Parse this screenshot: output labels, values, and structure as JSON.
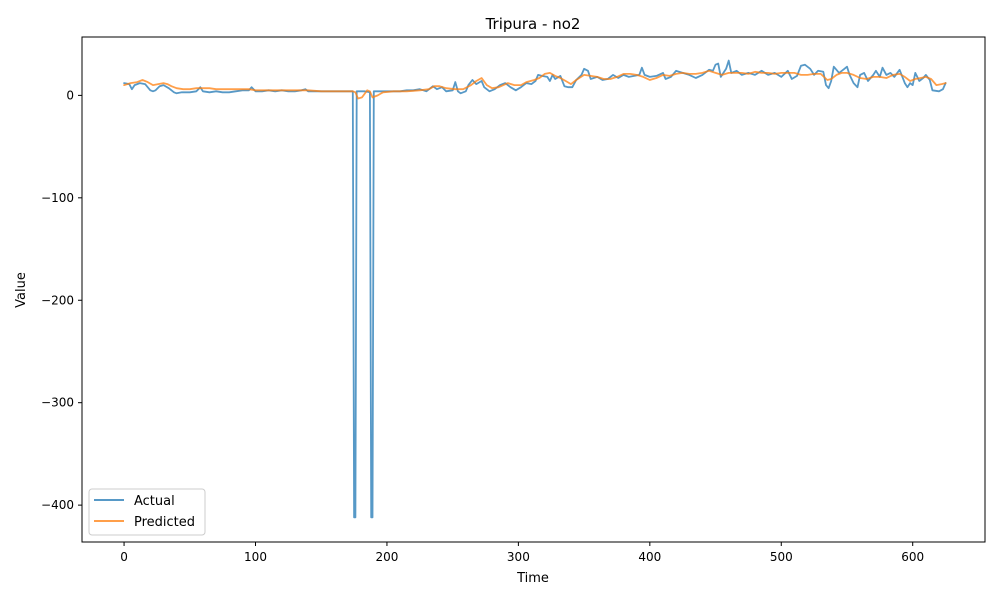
{
  "chart_data": {
    "type": "line",
    "title": "Tripura - no2",
    "xlabel": "Time",
    "ylabel": "Value",
    "xlim": [
      -32,
      655
    ],
    "ylim": [
      -436,
      57
    ],
    "xticks": [
      0,
      100,
      200,
      300,
      400,
      500,
      600
    ],
    "yticks": [
      -400,
      -300,
      -200,
      -100,
      0
    ],
    "ytick_labels": [
      "−400",
      "−300",
      "−200",
      "−100",
      "0"
    ],
    "grid": false,
    "legend_position": "lower-left",
    "series": [
      {
        "name": "Actual",
        "color": "#1f77b4",
        "points": [
          [
            0,
            12
          ],
          [
            4,
            11
          ],
          [
            6,
            6
          ],
          [
            8,
            10
          ],
          [
            12,
            12
          ],
          [
            16,
            11
          ],
          [
            18,
            8
          ],
          [
            20,
            5
          ],
          [
            22,
            4
          ],
          [
            24,
            5
          ],
          [
            27,
            9
          ],
          [
            30,
            10
          ],
          [
            34,
            7
          ],
          [
            38,
            3
          ],
          [
            40,
            2
          ],
          [
            44,
            3
          ],
          [
            50,
            3
          ],
          [
            55,
            4
          ],
          [
            58,
            8
          ],
          [
            60,
            4
          ],
          [
            65,
            3
          ],
          [
            70,
            4
          ],
          [
            75,
            3
          ],
          [
            80,
            3
          ],
          [
            90,
            5
          ],
          [
            95,
            5
          ],
          [
            97,
            8
          ],
          [
            100,
            4
          ],
          [
            105,
            4
          ],
          [
            110,
            5
          ],
          [
            115,
            4
          ],
          [
            120,
            5
          ],
          [
            125,
            4
          ],
          [
            130,
            4
          ],
          [
            135,
            5
          ],
          [
            138,
            6
          ],
          [
            140,
            4
          ],
          [
            150,
            4
          ],
          [
            160,
            4
          ],
          [
            170,
            4
          ],
          [
            174,
            4
          ],
          [
            175,
            -412
          ],
          [
            176,
            -412
          ],
          [
            177,
            4
          ],
          [
            183,
            4
          ],
          [
            187,
            3
          ],
          [
            188,
            -412
          ],
          [
            189,
            -412
          ],
          [
            190,
            4
          ],
          [
            200,
            4
          ],
          [
            210,
            4
          ],
          [
            215,
            5
          ],
          [
            220,
            5
          ],
          [
            225,
            6
          ],
          [
            230,
            4
          ],
          [
            235,
            9
          ],
          [
            238,
            6
          ],
          [
            242,
            8
          ],
          [
            245,
            4
          ],
          [
            250,
            5
          ],
          [
            252,
            13
          ],
          [
            254,
            4
          ],
          [
            256,
            2
          ],
          [
            260,
            4
          ],
          [
            262,
            10
          ],
          [
            265,
            15
          ],
          [
            268,
            11
          ],
          [
            272,
            14
          ],
          [
            274,
            8
          ],
          [
            278,
            4
          ],
          [
            282,
            6
          ],
          [
            286,
            10
          ],
          [
            290,
            12
          ],
          [
            294,
            8
          ],
          [
            298,
            5
          ],
          [
            302,
            8
          ],
          [
            306,
            12
          ],
          [
            310,
            11
          ],
          [
            313,
            14
          ],
          [
            315,
            20
          ],
          [
            318,
            19
          ],
          [
            322,
            18
          ],
          [
            324,
            14
          ],
          [
            326,
            20
          ],
          [
            328,
            16
          ],
          [
            332,
            19
          ],
          [
            335,
            9
          ],
          [
            338,
            8
          ],
          [
            341,
            8
          ],
          [
            344,
            15
          ],
          [
            348,
            20
          ],
          [
            350,
            26
          ],
          [
            353,
            24
          ],
          [
            355,
            16
          ],
          [
            360,
            18
          ],
          [
            364,
            15
          ],
          [
            368,
            16
          ],
          [
            372,
            20
          ],
          [
            376,
            17
          ],
          [
            380,
            20
          ],
          [
            384,
            18
          ],
          [
            388,
            19
          ],
          [
            392,
            20
          ],
          [
            394,
            27
          ],
          [
            396,
            20
          ],
          [
            400,
            18
          ],
          [
            405,
            19
          ],
          [
            410,
            22
          ],
          [
            412,
            16
          ],
          [
            416,
            18
          ],
          [
            420,
            24
          ],
          [
            425,
            22
          ],
          [
            430,
            20
          ],
          [
            435,
            17
          ],
          [
            440,
            20
          ],
          [
            445,
            25
          ],
          [
            448,
            24
          ],
          [
            450,
            30
          ],
          [
            452,
            31
          ],
          [
            454,
            18
          ],
          [
            458,
            26
          ],
          [
            460,
            34
          ],
          [
            462,
            22
          ],
          [
            466,
            24
          ],
          [
            470,
            20
          ],
          [
            475,
            22
          ],
          [
            480,
            20
          ],
          [
            485,
            24
          ],
          [
            490,
            20
          ],
          [
            495,
            22
          ],
          [
            500,
            18
          ],
          [
            505,
            24
          ],
          [
            508,
            16
          ],
          [
            512,
            19
          ],
          [
            515,
            29
          ],
          [
            518,
            30
          ],
          [
            522,
            26
          ],
          [
            525,
            20
          ],
          [
            528,
            24
          ],
          [
            532,
            23
          ],
          [
            534,
            10
          ],
          [
            536,
            7
          ],
          [
            538,
            14
          ],
          [
            540,
            28
          ],
          [
            544,
            22
          ],
          [
            548,
            26
          ],
          [
            550,
            28
          ],
          [
            552,
            20
          ],
          [
            555,
            12
          ],
          [
            558,
            8
          ],
          [
            560,
            20
          ],
          [
            563,
            22
          ],
          [
            566,
            14
          ],
          [
            570,
            20
          ],
          [
            572,
            24
          ],
          [
            575,
            18
          ],
          [
            577,
            27
          ],
          [
            580,
            20
          ],
          [
            583,
            22
          ],
          [
            586,
            18
          ],
          [
            590,
            25
          ],
          [
            594,
            12
          ],
          [
            596,
            8
          ],
          [
            598,
            12
          ],
          [
            600,
            10
          ],
          [
            602,
            22
          ],
          [
            605,
            14
          ],
          [
            608,
            17
          ],
          [
            610,
            20
          ],
          [
            613,
            15
          ],
          [
            615,
            5
          ],
          [
            620,
            4
          ],
          [
            623,
            6
          ],
          [
            625,
            12
          ]
        ]
      },
      {
        "name": "Predicted",
        "color": "#ff7f0e",
        "points": [
          [
            0,
            10
          ],
          [
            5,
            12
          ],
          [
            10,
            13
          ],
          [
            14,
            15
          ],
          [
            18,
            13
          ],
          [
            22,
            10
          ],
          [
            26,
            11
          ],
          [
            30,
            12
          ],
          [
            33,
            11
          ],
          [
            36,
            9
          ],
          [
            40,
            7
          ],
          [
            45,
            6
          ],
          [
            50,
            6
          ],
          [
            55,
            7
          ],
          [
            60,
            7
          ],
          [
            65,
            7
          ],
          [
            70,
            6
          ],
          [
            75,
            6
          ],
          [
            80,
            6
          ],
          [
            90,
            6
          ],
          [
            95,
            6
          ],
          [
            100,
            5
          ],
          [
            110,
            5
          ],
          [
            120,
            5
          ],
          [
            130,
            5
          ],
          [
            140,
            5
          ],
          [
            150,
            4
          ],
          [
            160,
            4
          ],
          [
            170,
            4
          ],
          [
            174,
            4
          ],
          [
            176,
            3
          ],
          [
            178,
            -3
          ],
          [
            181,
            -2
          ],
          [
            185,
            5
          ],
          [
            187,
            4
          ],
          [
            189,
            -2
          ],
          [
            193,
            0
          ],
          [
            197,
            3
          ],
          [
            205,
            4
          ],
          [
            215,
            4
          ],
          [
            225,
            5
          ],
          [
            232,
            6
          ],
          [
            236,
            9
          ],
          [
            240,
            9
          ],
          [
            245,
            7
          ],
          [
            252,
            6
          ],
          [
            258,
            6
          ],
          [
            264,
            10
          ],
          [
            268,
            14
          ],
          [
            272,
            17
          ],
          [
            276,
            10
          ],
          [
            280,
            7
          ],
          [
            285,
            8
          ],
          [
            292,
            12
          ],
          [
            297,
            10
          ],
          [
            302,
            10
          ],
          [
            306,
            13
          ],
          [
            312,
            15
          ],
          [
            316,
            17
          ],
          [
            320,
            21
          ],
          [
            324,
            22
          ],
          [
            328,
            19
          ],
          [
            332,
            17
          ],
          [
            336,
            14
          ],
          [
            340,
            11
          ],
          [
            344,
            15
          ],
          [
            350,
            20
          ],
          [
            355,
            19
          ],
          [
            360,
            18
          ],
          [
            365,
            16
          ],
          [
            370,
            16
          ],
          [
            375,
            18
          ],
          [
            380,
            21
          ],
          [
            385,
            21
          ],
          [
            390,
            20
          ],
          [
            395,
            18
          ],
          [
            400,
            15
          ],
          [
            405,
            17
          ],
          [
            410,
            20
          ],
          [
            415,
            19
          ],
          [
            420,
            21
          ],
          [
            425,
            22
          ],
          [
            430,
            21
          ],
          [
            435,
            21
          ],
          [
            440,
            22
          ],
          [
            445,
            24
          ],
          [
            450,
            22
          ],
          [
            455,
            20
          ],
          [
            460,
            22
          ],
          [
            465,
            22
          ],
          [
            470,
            22
          ],
          [
            475,
            21
          ],
          [
            480,
            23
          ],
          [
            485,
            22
          ],
          [
            490,
            22
          ],
          [
            495,
            21
          ],
          [
            500,
            22
          ],
          [
            505,
            22
          ],
          [
            510,
            22
          ],
          [
            515,
            20
          ],
          [
            520,
            20
          ],
          [
            525,
            21
          ],
          [
            530,
            21
          ],
          [
            535,
            15
          ],
          [
            538,
            16
          ],
          [
            542,
            20
          ],
          [
            546,
            22
          ],
          [
            550,
            22
          ],
          [
            555,
            20
          ],
          [
            560,
            17
          ],
          [
            565,
            16
          ],
          [
            570,
            18
          ],
          [
            575,
            18
          ],
          [
            580,
            17
          ],
          [
            585,
            20
          ],
          [
            590,
            21
          ],
          [
            594,
            18
          ],
          [
            598,
            14
          ],
          [
            602,
            16
          ],
          [
            606,
            17
          ],
          [
            610,
            18
          ],
          [
            614,
            16
          ],
          [
            618,
            10
          ],
          [
            622,
            11
          ],
          [
            625,
            12
          ]
        ]
      }
    ]
  }
}
